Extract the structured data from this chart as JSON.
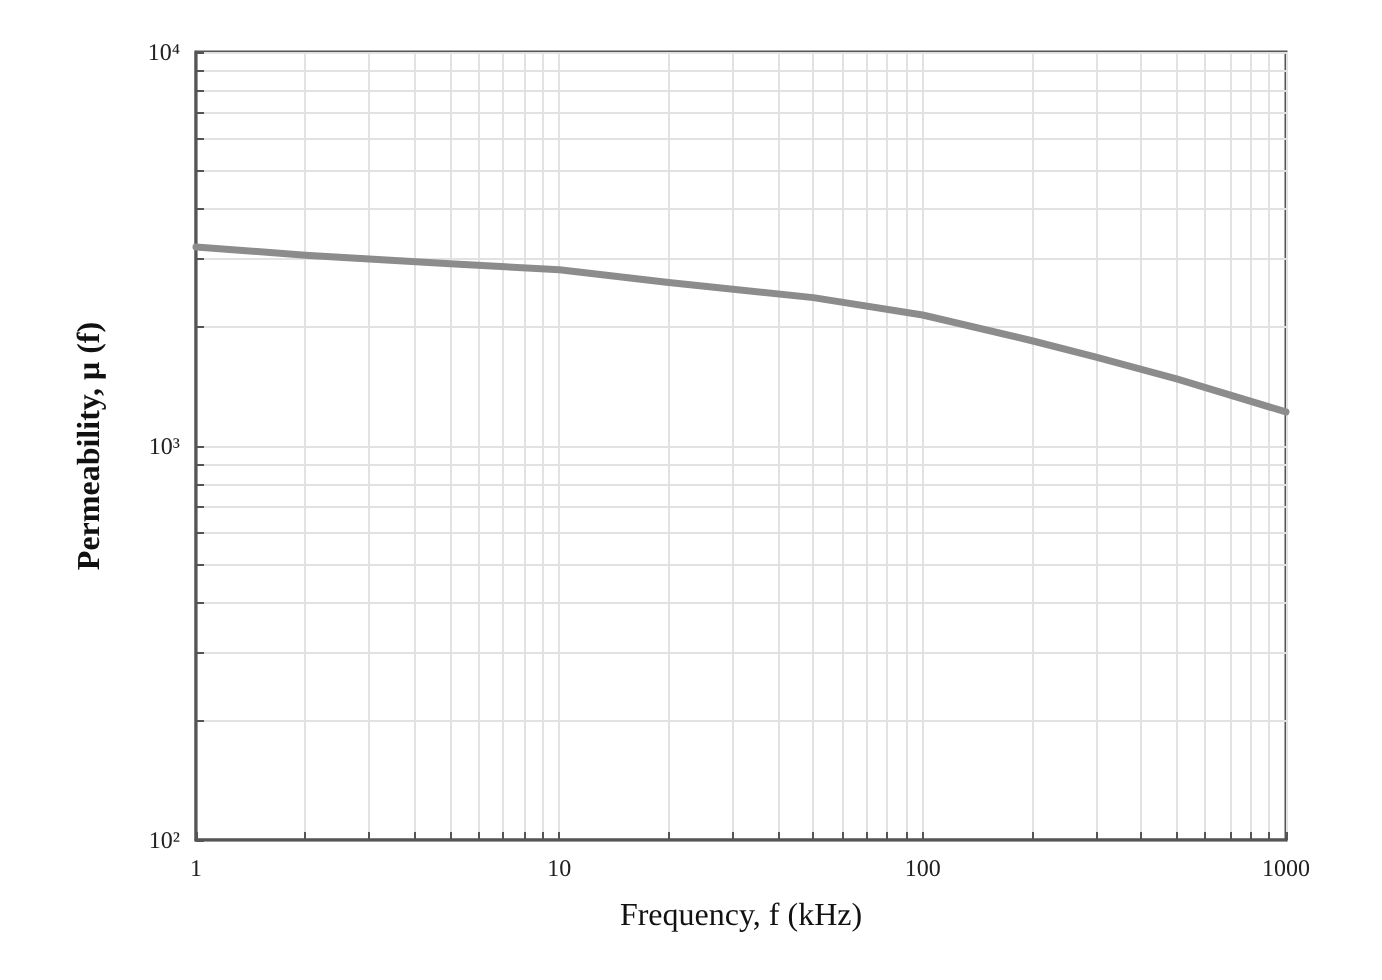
{
  "chart_data": {
    "type": "line",
    "xlabel": "Frequency, f (kHz)",
    "ylabel": "Permeability, μ (f)",
    "log": "xy",
    "x": [
      1,
      2,
      5,
      10,
      20,
      50,
      100,
      200,
      300,
      500,
      1000
    ],
    "series": [
      {
        "color": "#8c8c8c",
        "values": [
          3200,
          3050,
          2900,
          2800,
          2600,
          2380,
          2150,
          1850,
          1680,
          1480,
          1220
        ]
      }
    ],
    "xlim": [
      1,
      1000
    ],
    "ylim": [
      100,
      10000
    ],
    "xticks": [
      1,
      {
        "value": 2,
        "label": null
      },
      {
        "value": 3,
        "label": null
      },
      {
        "value": 4,
        "label": null
      },
      {
        "value": 5,
        "label": null
      },
      {
        "value": 6,
        "label": null
      },
      {
        "value": 7,
        "label": null
      },
      {
        "value": 8,
        "label": null
      },
      {
        "value": 9,
        "label": null
      },
      10,
      {
        "value": 20,
        "label": null
      },
      {
        "value": 30,
        "label": null
      },
      {
        "value": 40,
        "label": null
      },
      {
        "value": 50,
        "label": null
      },
      {
        "value": 60,
        "label": null
      },
      {
        "value": 70,
        "label": null
      },
      {
        "value": 80,
        "label": null
      },
      {
        "value": 90,
        "label": null
      },
      100,
      {
        "value": 200,
        "label": null
      },
      {
        "value": 300,
        "label": null
      },
      {
        "value": 400,
        "label": null
      },
      {
        "value": 500,
        "label": null
      },
      {
        "value": 600,
        "label": null
      },
      {
        "value": 700,
        "label": null
      },
      {
        "value": 800,
        "label": null
      },
      {
        "value": 900,
        "label": null
      },
      1000
    ],
    "yticks": [
      {
        "value": 100,
        "label": "10²"
      },
      {
        "value": 200,
        "label": null
      },
      {
        "value": 300,
        "label": null
      },
      {
        "value": 400,
        "label": null
      },
      {
        "value": 500,
        "label": null
      },
      {
        "value": 600,
        "label": null
      },
      {
        "value": 700,
        "label": null
      },
      {
        "value": 800,
        "label": null
      },
      {
        "value": 900,
        "label": null
      },
      {
        "value": 1000,
        "label": "10³"
      },
      {
        "value": 2000,
        "label": null
      },
      {
        "value": 3000,
        "label": null
      },
      {
        "value": 4000,
        "label": null
      },
      {
        "value": 5000,
        "label": null
      },
      {
        "value": 6000,
        "label": null
      },
      {
        "value": 7000,
        "label": null
      },
      {
        "value": 8000,
        "label": null
      },
      {
        "value": 9000,
        "label": null
      },
      {
        "value": 10000,
        "label": "10⁴"
      }
    ],
    "grid": true,
    "marker": "none",
    "line_style": "solid"
  }
}
